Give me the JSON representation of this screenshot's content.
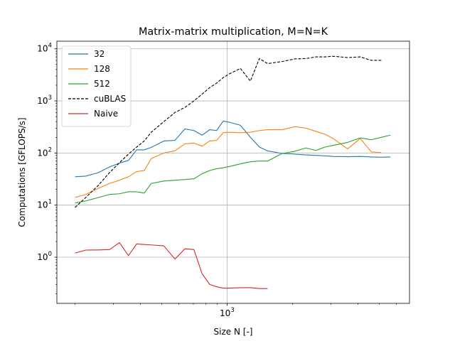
{
  "chart_data": {
    "type": "line",
    "title": "Matrix-matrix multiplication, M=N=K",
    "xlabel": "Size N [-]",
    "ylabel": "Computations [GFLOPS/s]",
    "xscale": "log",
    "yscale": "log",
    "xlim": [
      165,
      6900
    ],
    "ylim": [
      0.13,
      14000
    ],
    "grid": "major",
    "legend_position": "top-left",
    "x_tick_labels": [
      {
        "value": 1000,
        "base": "10",
        "exp": "3"
      }
    ],
    "y_tick_labels": [
      {
        "value": 1,
        "base": "10",
        "exp": "0"
      },
      {
        "value": 10,
        "base": "10",
        "exp": "1"
      },
      {
        "value": 100,
        "base": "10",
        "exp": "2"
      },
      {
        "value": 1000,
        "base": "10",
        "exp": "3"
      },
      {
        "value": 10000,
        "base": "10",
        "exp": "4"
      }
    ],
    "series": [
      {
        "name": "32",
        "color": "#1f77b4",
        "dash": "solid",
        "x": [
          200,
          224,
          256,
          288,
          320,
          352,
          384,
          416,
          448,
          512,
          576,
          640,
          704,
          768,
          832,
          896,
          960,
          1024,
          1152,
          1280,
          1408,
          1536,
          1792,
          2048,
          2304,
          2560,
          2816,
          3072,
          3584,
          4096,
          4608,
          5120,
          5632
        ],
        "y": [
          35,
          36,
          42,
          54,
          64,
          72,
          115,
          115,
          128,
          170,
          175,
          290,
          270,
          220,
          280,
          270,
          410,
          390,
          340,
          200,
          130,
          110,
          98,
          95,
          92,
          90,
          88,
          86,
          85,
          86,
          84,
          83,
          84
        ]
      },
      {
        "name": "128",
        "color": "#ff7f0e",
        "dash": "solid",
        "x": [
          200,
          224,
          256,
          288,
          320,
          352,
          384,
          416,
          448,
          512,
          576,
          640,
          704,
          768,
          832,
          896,
          960,
          1024,
          1152,
          1280,
          1408,
          1536,
          1792,
          2048,
          2304,
          2560,
          2816,
          3072,
          3584,
          4096,
          4608,
          5120
        ],
        "y": [
          14,
          16,
          21,
          26,
          30,
          35,
          44,
          46,
          78,
          100,
          110,
          150,
          155,
          135,
          170,
          175,
          245,
          250,
          245,
          250,
          270,
          280,
          280,
          320,
          300,
          260,
          230,
          190,
          120,
          190,
          105,
          102
        ]
      },
      {
        "name": "512",
        "color": "#2ca02c",
        "dash": "solid",
        "x": [
          200,
          224,
          256,
          288,
          320,
          352,
          384,
          416,
          448,
          512,
          576,
          640,
          704,
          768,
          832,
          896,
          960,
          1024,
          1152,
          1280,
          1408,
          1536,
          1792,
          2048,
          2304,
          2560,
          2816,
          3072,
          3584,
          4096,
          4608,
          5120,
          5632
        ],
        "y": [
          11,
          12,
          14,
          16,
          16.5,
          18,
          18,
          17,
          26,
          29,
          30,
          31,
          32,
          40,
          46,
          50,
          52,
          55,
          62,
          68,
          70,
          70,
          98,
          108,
          125,
          112,
          130,
          140,
          160,
          195,
          180,
          200,
          220
        ]
      },
      {
        "name": "cuBLAS",
        "color": "#000000",
        "dash": "dashed",
        "x": [
          200,
          224,
          256,
          288,
          320,
          352,
          384,
          416,
          448,
          512,
          576,
          640,
          704,
          768,
          832,
          896,
          960,
          1024,
          1152,
          1280,
          1408,
          1536,
          1792,
          2048,
          2304,
          2560,
          2816,
          3072,
          3584,
          4096,
          4608,
          5120
        ],
        "y": [
          9,
          14,
          24,
          42,
          65,
          95,
          130,
          170,
          250,
          400,
          600,
          750,
          1000,
          1350,
          1800,
          2200,
          2800,
          3300,
          4200,
          2400,
          6500,
          5200,
          5700,
          6400,
          6500,
          7000,
          7000,
          7200,
          6800,
          7000,
          6000,
          6000
        ]
      },
      {
        "name": "Naive",
        "color": "#d62728",
        "dash": "solid",
        "x": [
          200,
          224,
          256,
          288,
          320,
          352,
          384,
          416,
          448,
          512,
          576,
          640,
          704,
          768,
          832,
          896,
          960,
          1024,
          1152,
          1280,
          1408,
          1536
        ],
        "y": [
          1.2,
          1.37,
          1.38,
          1.4,
          1.9,
          1.07,
          1.8,
          1.75,
          1.72,
          1.65,
          0.92,
          1.45,
          1.4,
          0.48,
          0.3,
          0.27,
          0.255,
          0.255,
          0.26,
          0.26,
          0.25,
          0.25
        ]
      }
    ]
  }
}
